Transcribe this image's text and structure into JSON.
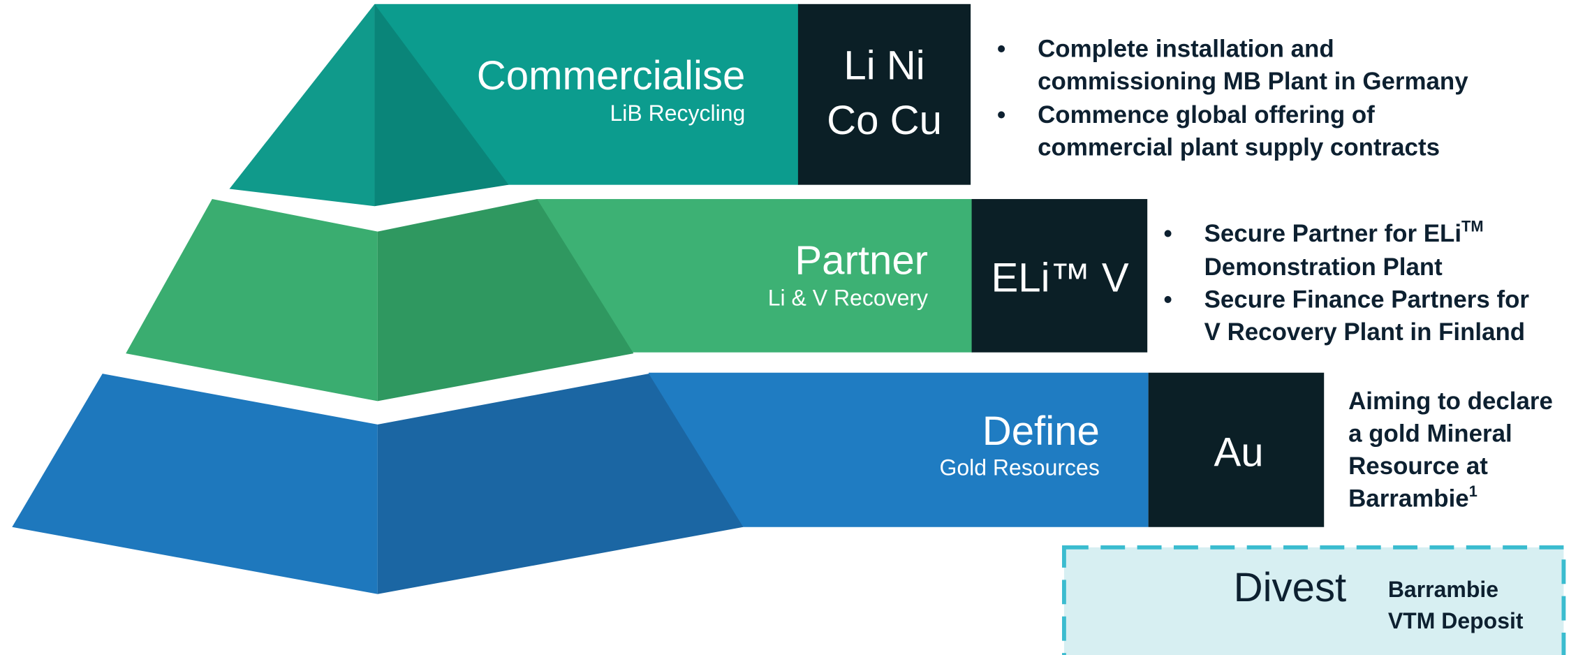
{
  "tiers": [
    {
      "title": "Commercialise",
      "subtitle": "LiB Recycling",
      "elements": [
        "Li Ni",
        "Co Cu"
      ],
      "bullets": [
        [
          "Complete installation and",
          "commissioning MB Plant in Germany"
        ],
        [
          "Commence global offering of",
          "commercial plant supply contracts"
        ]
      ]
    },
    {
      "title": "Partner",
      "subtitle": "Li & V Recovery",
      "elements": [
        "ELi™ V"
      ],
      "bullets": [
        [
          "Secure Partner for ELi",
          "Demonstration Plant"
        ],
        [
          "Secure Finance Partners for",
          "V Recovery Plant in Finland"
        ]
      ],
      "bullet_sup": "TM"
    },
    {
      "title": "Define",
      "subtitle": "Gold Resources",
      "elements": [
        "Au"
      ],
      "statement": [
        "Aiming to declare",
        "a gold Mineral",
        "Resource at",
        "Barrambie"
      ],
      "statement_sup": "1"
    }
  ],
  "divest": {
    "title": "Divest",
    "text": [
      "Barrambie",
      "VTM Deposit"
    ]
  }
}
